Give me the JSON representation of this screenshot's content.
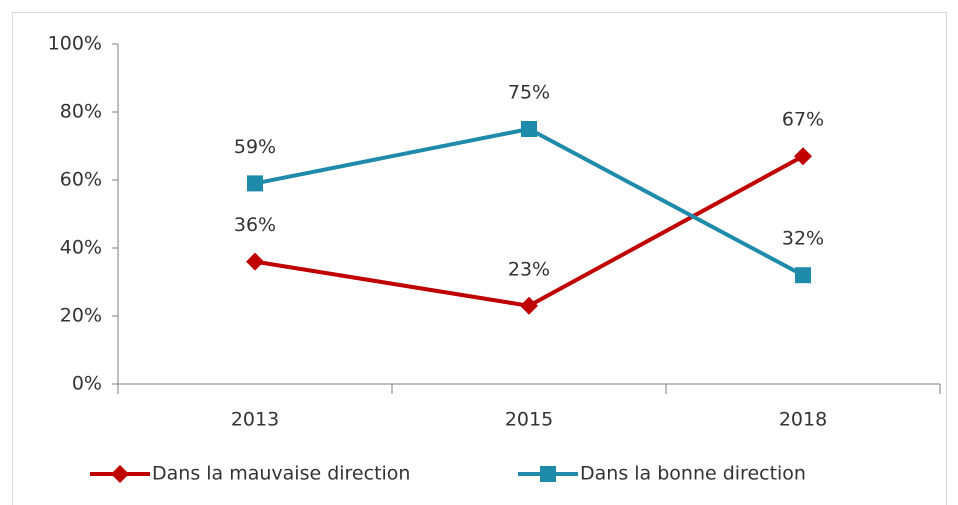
{
  "chart_data": {
    "type": "line",
    "categories": [
      "2013",
      "2015",
      "2018"
    ],
    "series": [
      {
        "name": "Dans la mauvaise direction",
        "color": "#c00000",
        "marker": "diamond",
        "values": [
          36,
          23,
          67
        ],
        "value_labels": [
          "36%",
          "23%",
          "67%"
        ]
      },
      {
        "name": "Dans la bonne direction",
        "color": "#1f8bab",
        "marker": "square",
        "values": [
          59,
          75,
          32
        ],
        "value_labels": [
          "59%",
          "75%",
          "32%"
        ]
      }
    ],
    "ylim": [
      0,
      100
    ],
    "yticks": [
      {
        "value": 0,
        "label": "0%"
      },
      {
        "value": 20,
        "label": "20%"
      },
      {
        "value": 40,
        "label": "40%"
      },
      {
        "value": 60,
        "label": "60%"
      },
      {
        "value": 80,
        "label": "80%"
      },
      {
        "value": 100,
        "label": "100%"
      }
    ],
    "legend": "bottom"
  }
}
